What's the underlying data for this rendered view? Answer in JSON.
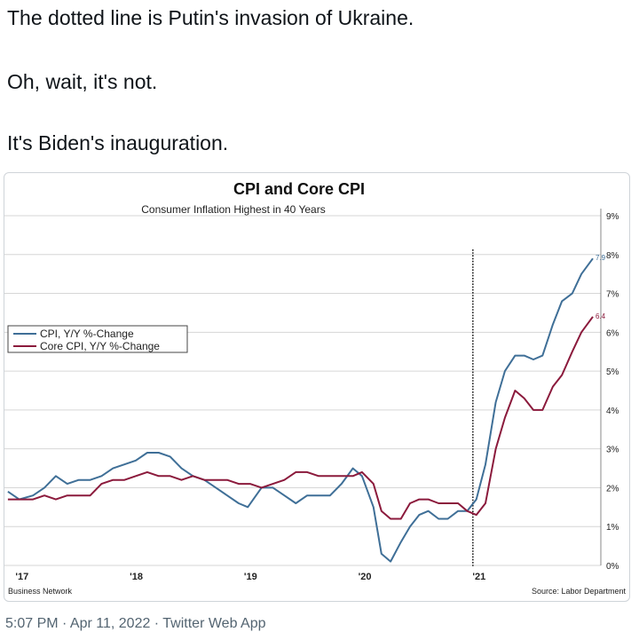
{
  "tweet": {
    "lines": [
      "The dotted line is Putin's invasion of Ukraine.",
      "Oh, wait, it's not.",
      "It's Biden's inauguration."
    ],
    "footer": "5:07 PM · Apr 11, 2022 · Twitter Web App"
  },
  "chart_data": {
    "type": "line",
    "title": "CPI and Core CPI",
    "subtitle": "Consumer Inflation Highest in 40 Years",
    "source": "Source: Labor Department",
    "credit": "Business Network",
    "x_ticks": [
      "'17",
      "'18",
      "'19",
      "'20",
      "'21"
    ],
    "y_ticks": [
      "0%",
      "1%",
      "2%",
      "3%",
      "4%",
      "5%",
      "6%",
      "7%",
      "8%",
      "9%"
    ],
    "ylim": [
      0,
      9
    ],
    "grid": true,
    "legend_position": "middle-left",
    "vline_x": 2021.05,
    "series": [
      {
        "name": "CPI, Y/Y %-Change",
        "color": "#3f6f97",
        "end_label": "7.9",
        "points": [
          [
            2016.98,
            1.9
          ],
          [
            2017.08,
            1.7
          ],
          [
            2017.2,
            1.8
          ],
          [
            2017.3,
            2.0
          ],
          [
            2017.4,
            2.3
          ],
          [
            2017.5,
            2.1
          ],
          [
            2017.6,
            2.2
          ],
          [
            2017.7,
            2.2
          ],
          [
            2017.8,
            2.3
          ],
          [
            2017.9,
            2.5
          ],
          [
            2018.0,
            2.6
          ],
          [
            2018.1,
            2.7
          ],
          [
            2018.2,
            2.9
          ],
          [
            2018.3,
            2.9
          ],
          [
            2018.4,
            2.8
          ],
          [
            2018.5,
            2.5
          ],
          [
            2018.6,
            2.3
          ],
          [
            2018.7,
            2.2
          ],
          [
            2018.8,
            2.0
          ],
          [
            2018.9,
            1.8
          ],
          [
            2019.0,
            1.6
          ],
          [
            2019.08,
            1.5
          ],
          [
            2019.2,
            2.0
          ],
          [
            2019.3,
            2.0
          ],
          [
            2019.4,
            1.8
          ],
          [
            2019.5,
            1.6
          ],
          [
            2019.6,
            1.8
          ],
          [
            2019.7,
            1.8
          ],
          [
            2019.8,
            1.8
          ],
          [
            2019.9,
            2.1
          ],
          [
            2020.0,
            2.5
          ],
          [
            2020.08,
            2.3
          ],
          [
            2020.18,
            1.5
          ],
          [
            2020.25,
            0.3
          ],
          [
            2020.33,
            0.1
          ],
          [
            2020.42,
            0.6
          ],
          [
            2020.5,
            1.0
          ],
          [
            2020.58,
            1.3
          ],
          [
            2020.66,
            1.4
          ],
          [
            2020.75,
            1.2
          ],
          [
            2020.83,
            1.2
          ],
          [
            2020.92,
            1.4
          ],
          [
            2021.0,
            1.4
          ],
          [
            2021.08,
            1.7
          ],
          [
            2021.16,
            2.6
          ],
          [
            2021.25,
            4.2
          ],
          [
            2021.33,
            5.0
          ],
          [
            2021.42,
            5.4
          ],
          [
            2021.5,
            5.4
          ],
          [
            2021.58,
            5.3
          ],
          [
            2021.66,
            5.4
          ],
          [
            2021.75,
            6.2
          ],
          [
            2021.83,
            6.8
          ],
          [
            2021.92,
            7.0
          ],
          [
            2022.0,
            7.5
          ],
          [
            2022.1,
            7.9
          ]
        ]
      },
      {
        "name": "Core CPI, Y/Y %-Change",
        "color": "#8b1a3c",
        "end_label": "6.4",
        "points": [
          [
            2016.98,
            1.7
          ],
          [
            2017.1,
            1.7
          ],
          [
            2017.2,
            1.7
          ],
          [
            2017.3,
            1.8
          ],
          [
            2017.4,
            1.7
          ],
          [
            2017.5,
            1.8
          ],
          [
            2017.6,
            1.8
          ],
          [
            2017.7,
            1.8
          ],
          [
            2017.8,
            2.1
          ],
          [
            2017.9,
            2.2
          ],
          [
            2018.0,
            2.2
          ],
          [
            2018.1,
            2.3
          ],
          [
            2018.2,
            2.4
          ],
          [
            2018.3,
            2.3
          ],
          [
            2018.4,
            2.3
          ],
          [
            2018.5,
            2.2
          ],
          [
            2018.6,
            2.3
          ],
          [
            2018.7,
            2.2
          ],
          [
            2018.8,
            2.2
          ],
          [
            2018.9,
            2.2
          ],
          [
            2019.0,
            2.1
          ],
          [
            2019.1,
            2.1
          ],
          [
            2019.2,
            2.0
          ],
          [
            2019.3,
            2.1
          ],
          [
            2019.4,
            2.2
          ],
          [
            2019.5,
            2.4
          ],
          [
            2019.6,
            2.4
          ],
          [
            2019.7,
            2.3
          ],
          [
            2019.8,
            2.3
          ],
          [
            2019.9,
            2.3
          ],
          [
            2020.0,
            2.3
          ],
          [
            2020.08,
            2.4
          ],
          [
            2020.18,
            2.1
          ],
          [
            2020.25,
            1.4
          ],
          [
            2020.33,
            1.2
          ],
          [
            2020.42,
            1.2
          ],
          [
            2020.5,
            1.6
          ],
          [
            2020.58,
            1.7
          ],
          [
            2020.66,
            1.7
          ],
          [
            2020.75,
            1.6
          ],
          [
            2020.83,
            1.6
          ],
          [
            2020.92,
            1.6
          ],
          [
            2021.0,
            1.4
          ],
          [
            2021.08,
            1.3
          ],
          [
            2021.16,
            1.6
          ],
          [
            2021.25,
            3.0
          ],
          [
            2021.33,
            3.8
          ],
          [
            2021.42,
            4.5
          ],
          [
            2021.5,
            4.3
          ],
          [
            2021.58,
            4.0
          ],
          [
            2021.66,
            4.0
          ],
          [
            2021.75,
            4.6
          ],
          [
            2021.83,
            4.9
          ],
          [
            2021.92,
            5.5
          ],
          [
            2022.0,
            6.0
          ],
          [
            2022.1,
            6.4
          ]
        ]
      }
    ]
  }
}
